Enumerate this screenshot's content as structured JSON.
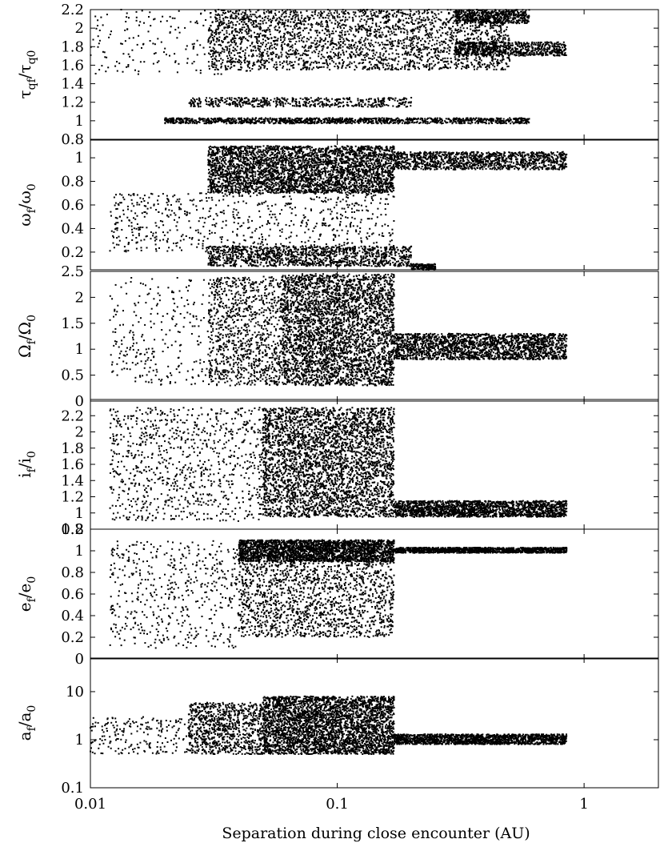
{
  "chart_data": {
    "type": "scatter",
    "xlabel": "Separation during close encounter (AU)",
    "xscale": "log",
    "xlim": [
      0.01,
      2.0
    ],
    "xticks": [
      {
        "value": 0.01,
        "label": "0.01"
      },
      {
        "value": 0.1,
        "label": "0.1"
      },
      {
        "value": 1,
        "label": "1"
      }
    ],
    "panels": [
      {
        "name": "tau",
        "ylabel": {
          "main": "τ",
          "sub1": "qf",
          "mid": "/τ",
          "sub2": "q0"
        },
        "ylim": [
          0.8,
          2.2
        ],
        "yticks": [
          {
            "value": 2.2,
            "label": "2.2"
          },
          {
            "value": 2.0,
            "label": "2"
          },
          {
            "value": 1.8,
            "label": "1.8"
          },
          {
            "value": 1.6,
            "label": "1.6"
          },
          {
            "value": 1.4,
            "label": "1.4"
          },
          {
            "value": 1.2,
            "label": "1.2"
          },
          {
            "value": 1.0,
            "label": "1"
          },
          {
            "value": 0.8,
            "label": "0.8"
          }
        ],
        "bands": [
          {
            "xmin": 0.03,
            "xmax": 0.5,
            "ymin": 1.55,
            "ymax": 2.2,
            "n": 2600
          },
          {
            "xmin": 0.3,
            "xmax": 0.85,
            "ymin": 1.7,
            "ymax": 1.85,
            "n": 700
          },
          {
            "xmin": 0.3,
            "xmax": 0.6,
            "ymin": 2.05,
            "ymax": 2.2,
            "n": 500
          },
          {
            "xmin": 0.01,
            "xmax": 0.05,
            "ymin": 1.5,
            "ymax": 2.2,
            "n": 200
          },
          {
            "xmin": 0.02,
            "xmax": 0.6,
            "ymin": 0.97,
            "ymax": 1.03,
            "n": 1200
          },
          {
            "xmin": 0.025,
            "xmax": 0.2,
            "ymin": 1.15,
            "ymax": 1.25,
            "n": 500
          }
        ]
      },
      {
        "name": "omega",
        "ylabel": {
          "main": "ω",
          "sub1": "f",
          "mid": "/ω",
          "sub2": "0"
        },
        "ylim": [
          0.05,
          1.15
        ],
        "yticks": [
          {
            "value": 1.0,
            "label": "1"
          },
          {
            "value": 0.8,
            "label": "0.8"
          },
          {
            "value": 0.6,
            "label": "0.6"
          },
          {
            "value": 0.4,
            "label": "0.4"
          },
          {
            "value": 0.2,
            "label": "0.2"
          }
        ],
        "bands": [
          {
            "xmin": 0.03,
            "xmax": 0.17,
            "ymin": 0.7,
            "ymax": 1.1,
            "n": 3500
          },
          {
            "xmin": 0.17,
            "xmax": 0.85,
            "ymin": 0.9,
            "ymax": 1.05,
            "n": 1200
          },
          {
            "xmin": 0.03,
            "xmax": 0.2,
            "ymin": 0.08,
            "ymax": 0.25,
            "n": 1200
          },
          {
            "xmin": 0.2,
            "xmax": 0.25,
            "ymin": 0.05,
            "ymax": 0.1,
            "n": 150
          },
          {
            "xmin": 0.012,
            "xmax": 0.17,
            "ymin": 0.2,
            "ymax": 0.7,
            "n": 700
          }
        ]
      },
      {
        "name": "Omega",
        "ylabel": {
          "main": "Ω",
          "sub1": "f",
          "mid": "/Ω",
          "sub2": "0"
        },
        "ylim": [
          0,
          2.5
        ],
        "yticks": [
          {
            "value": 2.5,
            "label": "2.5"
          },
          {
            "value": 2.0,
            "label": "2"
          },
          {
            "value": 1.5,
            "label": "1.5"
          },
          {
            "value": 1.0,
            "label": "1"
          },
          {
            "value": 0.5,
            "label": "0.5"
          },
          {
            "value": 0,
            "label": "0"
          }
        ],
        "bands": [
          {
            "xmin": 0.06,
            "xmax": 0.17,
            "ymin": 0.3,
            "ymax": 2.45,
            "n": 3500
          },
          {
            "xmin": 0.17,
            "xmax": 0.85,
            "ymin": 0.8,
            "ymax": 1.3,
            "n": 2000
          },
          {
            "xmin": 0.03,
            "xmax": 0.06,
            "ymin": 0.3,
            "ymax": 2.4,
            "n": 1000
          },
          {
            "xmin": 0.012,
            "xmax": 0.03,
            "ymin": 0.3,
            "ymax": 2.4,
            "n": 250
          }
        ]
      },
      {
        "name": "inclination",
        "ylabel": {
          "main": "i",
          "sub1": "f",
          "mid": "/i",
          "sub2": "0"
        },
        "ylim": [
          0.8,
          2.4
        ],
        "yticks": [
          {
            "value": 2.2,
            "label": "2.2"
          },
          {
            "value": 2.0,
            "label": "2"
          },
          {
            "value": 1.8,
            "label": "1.8"
          },
          {
            "value": 1.6,
            "label": "1.6"
          },
          {
            "value": 1.4,
            "label": "1.4"
          },
          {
            "value": 1.2,
            "label": "1.2"
          },
          {
            "value": 1.0,
            "label": "1"
          },
          {
            "value": 0.8,
            "label": "0.8"
          }
        ],
        "bands": [
          {
            "xmin": 0.05,
            "xmax": 0.17,
            "ymin": 0.95,
            "ymax": 2.3,
            "n": 3500
          },
          {
            "xmin": 0.17,
            "xmax": 0.85,
            "ymin": 0.95,
            "ymax": 1.15,
            "n": 1800
          },
          {
            "xmin": 0.012,
            "xmax": 0.05,
            "ymin": 0.9,
            "ymax": 2.3,
            "n": 900
          }
        ]
      },
      {
        "name": "eccentricity",
        "ylabel": {
          "main": "e",
          "sub1": "f",
          "mid": "/e",
          "sub2": "0"
        },
        "ylim": [
          0,
          1.2
        ],
        "yticks": [
          {
            "value": 1.2,
            "label": "1.2"
          },
          {
            "value": 1.0,
            "label": "1"
          },
          {
            "value": 0.8,
            "label": "0.8"
          },
          {
            "value": 0.6,
            "label": "0.6"
          },
          {
            "value": 0.4,
            "label": "0.4"
          },
          {
            "value": 0.2,
            "label": "0.2"
          },
          {
            "value": 0,
            "label": "0"
          }
        ],
        "bands": [
          {
            "xmin": 0.04,
            "xmax": 0.17,
            "ymin": 0.9,
            "ymax": 1.1,
            "n": 2500
          },
          {
            "xmin": 0.17,
            "xmax": 0.85,
            "ymin": 0.98,
            "ymax": 1.03,
            "n": 1200
          },
          {
            "xmin": 0.04,
            "xmax": 0.17,
            "ymin": 0.2,
            "ymax": 0.9,
            "n": 1500
          },
          {
            "xmin": 0.012,
            "xmax": 0.04,
            "ymin": 0.1,
            "ymax": 1.1,
            "n": 500
          }
        ]
      },
      {
        "name": "semimajor",
        "ylabel": {
          "main": "a",
          "sub1": "f",
          "mid": "/a",
          "sub2": "0"
        },
        "yscale": "log",
        "ylim": [
          0.1,
          50
        ],
        "yticks": [
          {
            "value": 10,
            "label": "10"
          },
          {
            "value": 1,
            "label": "1"
          },
          {
            "value": 0.1,
            "label": "0.1"
          }
        ],
        "bands": [
          {
            "xmin": 0.05,
            "xmax": 0.17,
            "ymin": 0.5,
            "ymax": 8,
            "n": 3500
          },
          {
            "xmin": 0.17,
            "xmax": 0.85,
            "ymin": 0.8,
            "ymax": 1.3,
            "n": 1500
          },
          {
            "xmin": 0.025,
            "xmax": 0.05,
            "ymin": 0.5,
            "ymax": 6,
            "n": 900
          },
          {
            "xmin": 0.01,
            "xmax": 0.025,
            "ymin": 0.5,
            "ymax": 3,
            "n": 200
          }
        ]
      }
    ]
  }
}
